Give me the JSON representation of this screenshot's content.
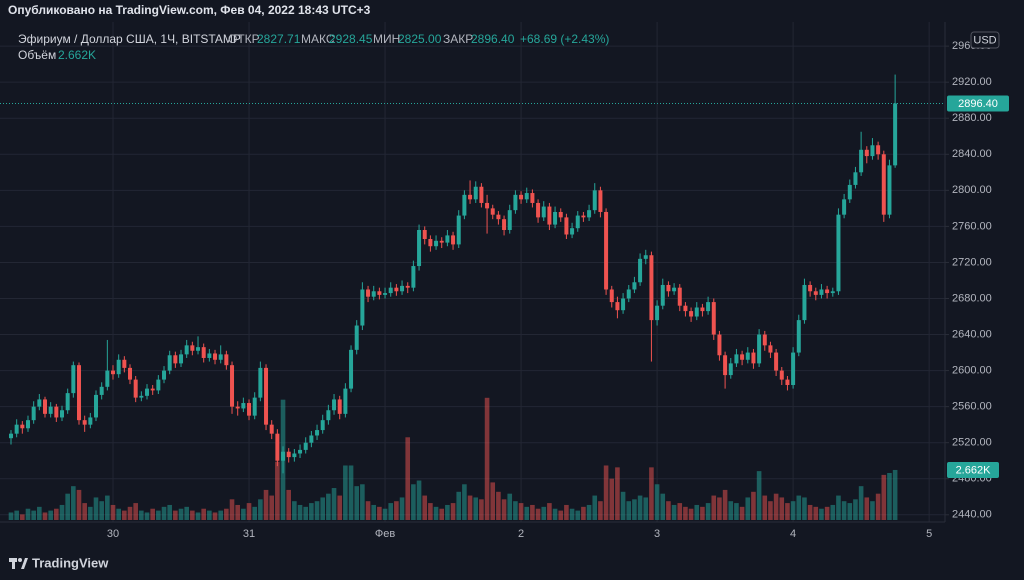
{
  "header": {
    "published": "Опубликовано на TradingView.com, Фев 04, 2022 18:43 UTC+3",
    "symbol": "Эфириум / Доллар США, 1Ч, BITSTAMP",
    "open_label": "ОТКР",
    "open": "2827.71",
    "high_label": "МАКС",
    "high": "2928.45",
    "low_label": "МИН",
    "low": "2825.00",
    "close_label": "ЗАКР",
    "close": "2896.40",
    "change": "+68.69 (+2.43%)",
    "volume_label": "Объём",
    "volume": "2.662K",
    "currency": "USD"
  },
  "footer": {
    "brand": "TradingView"
  },
  "chart_data": {
    "type": "candlestick",
    "up_color": "#26a69a",
    "down_color": "#ef5350",
    "grid": true,
    "last_price_line": true,
    "ylim": [
      2432,
      2989
    ],
    "yticks": [
      {
        "value": 2440,
        "label": "2440.00"
      },
      {
        "value": 2480,
        "label": "2480.00"
      },
      {
        "value": 2520,
        "label": "2520.00"
      },
      {
        "value": 2560,
        "label": "2560.00"
      },
      {
        "value": 2600,
        "label": "2600.00"
      },
      {
        "value": 2640,
        "label": "2640.00"
      },
      {
        "value": 2680,
        "label": "2680.00"
      },
      {
        "value": 2720,
        "label": "2720.00"
      },
      {
        "value": 2760,
        "label": "2760.00"
      },
      {
        "value": 2800,
        "label": "2800.00"
      },
      {
        "value": 2840,
        "label": "2840.00"
      },
      {
        "value": 2880,
        "label": "2880.00"
      },
      {
        "value": 2920,
        "label": "2920.00"
      },
      {
        "value": 2960,
        "label": "2960.00"
      }
    ],
    "xlim": [
      -1.94,
      164.8
    ],
    "xticks": [
      {
        "value": 18,
        "label": "30"
      },
      {
        "value": 42,
        "label": "31"
      },
      {
        "value": 66,
        "label": "Фев"
      },
      {
        "value": 90,
        "label": "2"
      },
      {
        "value": 114,
        "label": "3"
      },
      {
        "value": 138,
        "label": "4"
      },
      {
        "value": 162,
        "label": "5"
      }
    ],
    "candles": [
      [
        2525,
        2534,
        2518,
        2530
      ],
      [
        2530,
        2546,
        2526,
        2540
      ],
      [
        2540,
        2544,
        2530,
        2536
      ],
      [
        2536,
        2550,
        2532,
        2545
      ],
      [
        2545,
        2566,
        2541,
        2560
      ],
      [
        2560,
        2574,
        2556,
        2568
      ],
      [
        2568,
        2571,
        2548,
        2552
      ],
      [
        2552,
        2565,
        2548,
        2560
      ],
      [
        2560,
        2563,
        2543,
        2548
      ],
      [
        2548,
        2561,
        2544,
        2556
      ],
      [
        2556,
        2580,
        2552,
        2575
      ],
      [
        2575,
        2610,
        2570,
        2606
      ],
      [
        2606,
        2609,
        2540,
        2545
      ],
      [
        2545,
        2550,
        2532,
        2540
      ],
      [
        2540,
        2553,
        2536,
        2548
      ],
      [
        2548,
        2578,
        2544,
        2573
      ],
      [
        2573,
        2587,
        2568,
        2582
      ],
      [
        2582,
        2634,
        2578,
        2600
      ],
      [
        2600,
        2606,
        2590,
        2596
      ],
      [
        2596,
        2618,
        2592,
        2612
      ],
      [
        2612,
        2616,
        2598,
        2603
      ],
      [
        2603,
        2607,
        2585,
        2590
      ],
      [
        2590,
        2594,
        2565,
        2570
      ],
      [
        2570,
        2577,
        2566,
        2572
      ],
      [
        2572,
        2585,
        2568,
        2580
      ],
      [
        2580,
        2584,
        2573,
        2578
      ],
      [
        2578,
        2595,
        2574,
        2590
      ],
      [
        2590,
        2605,
        2586,
        2600
      ],
      [
        2600,
        2622,
        2596,
        2617
      ],
      [
        2617,
        2621,
        2603,
        2608
      ],
      [
        2608,
        2623,
        2604,
        2618
      ],
      [
        2618,
        2634,
        2614,
        2628
      ],
      [
        2628,
        2632,
        2617,
        2622
      ],
      [
        2622,
        2638,
        2618,
        2626
      ],
      [
        2626,
        2630,
        2609,
        2614
      ],
      [
        2614,
        2624,
        2610,
        2619
      ],
      [
        2619,
        2623,
        2607,
        2612
      ],
      [
        2612,
        2628,
        2608,
        2618
      ],
      [
        2618,
        2622,
        2601,
        2606
      ],
      [
        2606,
        2610,
        2552,
        2560
      ],
      [
        2560,
        2566,
        2550,
        2558
      ],
      [
        2558,
        2570,
        2554,
        2564
      ],
      [
        2564,
        2568,
        2545,
        2550
      ],
      [
        2550,
        2576,
        2546,
        2570
      ],
      [
        2570,
        2610,
        2566,
        2603
      ],
      [
        2603,
        2607,
        2534,
        2540
      ],
      [
        2540,
        2545,
        2524,
        2530
      ],
      [
        2530,
        2535,
        2494,
        2500
      ],
      [
        2500,
        2516,
        2486,
        2510
      ],
      [
        2510,
        2514,
        2498,
        2504
      ],
      [
        2504,
        2513,
        2499,
        2508
      ],
      [
        2508,
        2518,
        2503,
        2512
      ],
      [
        2512,
        2526,
        2508,
        2520
      ],
      [
        2520,
        2533,
        2515,
        2528
      ],
      [
        2528,
        2540,
        2523,
        2534
      ],
      [
        2534,
        2551,
        2530,
        2545
      ],
      [
        2545,
        2562,
        2540,
        2556
      ],
      [
        2556,
        2574,
        2551,
        2568
      ],
      [
        2568,
        2572,
        2546,
        2552
      ],
      [
        2552,
        2586,
        2548,
        2580
      ],
      [
        2580,
        2628,
        2576,
        2623
      ],
      [
        2623,
        2656,
        2618,
        2650
      ],
      [
        2650,
        2698,
        2645,
        2690
      ],
      [
        2690,
        2694,
        2676,
        2682
      ],
      [
        2682,
        2694,
        2678,
        2688
      ],
      [
        2688,
        2692,
        2679,
        2684
      ],
      [
        2684,
        2692,
        2680,
        2686
      ],
      [
        2686,
        2698,
        2682,
        2692
      ],
      [
        2692,
        2696,
        2683,
        2688
      ],
      [
        2688,
        2700,
        2684,
        2694
      ],
      [
        2694,
        2698,
        2686,
        2692
      ],
      [
        2692,
        2722,
        2688,
        2716
      ],
      [
        2716,
        2762,
        2711,
        2756
      ],
      [
        2756,
        2760,
        2740,
        2746
      ],
      [
        2746,
        2750,
        2732,
        2738
      ],
      [
        2738,
        2750,
        2734,
        2744
      ],
      [
        2744,
        2748,
        2736,
        2742
      ],
      [
        2742,
        2756,
        2738,
        2750
      ],
      [
        2750,
        2754,
        2734,
        2740
      ],
      [
        2740,
        2778,
        2736,
        2772
      ],
      [
        2772,
        2800,
        2768,
        2795
      ],
      [
        2795,
        2811,
        2785,
        2790
      ],
      [
        2790,
        2810,
        2786,
        2804
      ],
      [
        2804,
        2808,
        2781,
        2786
      ],
      [
        2786,
        2795,
        2752,
        2780
      ],
      [
        2780,
        2784,
        2768,
        2773
      ],
      [
        2773,
        2777,
        2762,
        2768
      ],
      [
        2768,
        2772,
        2750,
        2756
      ],
      [
        2756,
        2784,
        2752,
        2778
      ],
      [
        2778,
        2800,
        2774,
        2795
      ],
      [
        2795,
        2799,
        2785,
        2790
      ],
      [
        2790,
        2803,
        2786,
        2797
      ],
      [
        2797,
        2801,
        2781,
        2786
      ],
      [
        2786,
        2790,
        2764,
        2770
      ],
      [
        2770,
        2788,
        2766,
        2782
      ],
      [
        2782,
        2786,
        2756,
        2762
      ],
      [
        2762,
        2782,
        2758,
        2776
      ],
      [
        2776,
        2780,
        2765,
        2770
      ],
      [
        2770,
        2774,
        2746,
        2751
      ],
      [
        2751,
        2764,
        2747,
        2758
      ],
      [
        2758,
        2777,
        2754,
        2772
      ],
      [
        2772,
        2776,
        2765,
        2770
      ],
      [
        2770,
        2784,
        2766,
        2778
      ],
      [
        2778,
        2808,
        2774,
        2800
      ],
      [
        2800,
        2804,
        2770,
        2776
      ],
      [
        2776,
        2780,
        2684,
        2690
      ],
      [
        2690,
        2694,
        2670,
        2676
      ],
      [
        2676,
        2682,
        2658,
        2667
      ],
      [
        2667,
        2686,
        2663,
        2680
      ],
      [
        2680,
        2695,
        2676,
        2690
      ],
      [
        2690,
        2704,
        2686,
        2698
      ],
      [
        2698,
        2730,
        2694,
        2724
      ],
      [
        2724,
        2734,
        2718,
        2728
      ],
      [
        2728,
        2732,
        2610,
        2656
      ],
      [
        2656,
        2678,
        2650,
        2672
      ],
      [
        2672,
        2702,
        2668,
        2695
      ],
      [
        2695,
        2699,
        2682,
        2688
      ],
      [
        2688,
        2697,
        2684,
        2692
      ],
      [
        2692,
        2696,
        2666,
        2672
      ],
      [
        2672,
        2676,
        2660,
        2666
      ],
      [
        2666,
        2670,
        2654,
        2660
      ],
      [
        2660,
        2676,
        2656,
        2670
      ],
      [
        2670,
        2674,
        2660,
        2666
      ],
      [
        2666,
        2682,
        2662,
        2676
      ],
      [
        2676,
        2680,
        2634,
        2640
      ],
      [
        2640,
        2644,
        2611,
        2617
      ],
      [
        2617,
        2621,
        2580,
        2595
      ],
      [
        2595,
        2614,
        2591,
        2608
      ],
      [
        2608,
        2624,
        2604,
        2618
      ],
      [
        2618,
        2622,
        2606,
        2612
      ],
      [
        2612,
        2626,
        2608,
        2620
      ],
      [
        2620,
        2624,
        2602,
        2608
      ],
      [
        2608,
        2646,
        2604,
        2640
      ],
      [
        2640,
        2644,
        2622,
        2628
      ],
      [
        2628,
        2632,
        2614,
        2620
      ],
      [
        2620,
        2624,
        2594,
        2600
      ],
      [
        2600,
        2604,
        2584,
        2590
      ],
      [
        2590,
        2594,
        2578,
        2584
      ],
      [
        2584,
        2626,
        2580,
        2620
      ],
      [
        2620,
        2662,
        2616,
        2656
      ],
      [
        2656,
        2702,
        2652,
        2695
      ],
      [
        2695,
        2699,
        2682,
        2688
      ],
      [
        2688,
        2692,
        2678,
        2684
      ],
      [
        2684,
        2696,
        2680,
        2690
      ],
      [
        2690,
        2694,
        2680,
        2686
      ],
      [
        2686,
        2692,
        2682,
        2688
      ],
      [
        2688,
        2780,
        2684,
        2773
      ],
      [
        2773,
        2796,
        2769,
        2790
      ],
      [
        2790,
        2812,
        2786,
        2806
      ],
      [
        2806,
        2826,
        2802,
        2820
      ],
      [
        2820,
        2865,
        2816,
        2845
      ],
      [
        2845,
        2849,
        2830,
        2838
      ],
      [
        2838,
        2858,
        2834,
        2850
      ],
      [
        2850,
        2854,
        2834,
        2840
      ],
      [
        2840,
        2844,
        2765,
        2773
      ],
      [
        2773,
        2834,
        2769,
        2827.71
      ],
      [
        2827.71,
        2928.45,
        2825,
        2896.4
      ]
    ],
    "volumes": [
      0.4,
      0.5,
      0.3,
      0.6,
      0.5,
      0.7,
      0.4,
      0.5,
      0.6,
      0.8,
      1.4,
      1.8,
      1.6,
      0.9,
      0.7,
      1.2,
      1.0,
      1.3,
      0.8,
      0.6,
      0.5,
      0.7,
      0.9,
      0.5,
      0.4,
      0.6,
      0.5,
      0.7,
      0.8,
      0.5,
      0.6,
      0.7,
      0.5,
      0.4,
      0.6,
      0.5,
      0.4,
      0.5,
      0.6,
      1.1,
      0.8,
      0.6,
      0.9,
      0.7,
      1.1,
      1.6,
      1.3,
      3.1,
      6.4,
      1.6,
      1.0,
      0.8,
      0.7,
      0.9,
      1.0,
      1.2,
      1.4,
      1.7,
      1.3,
      2.9,
      2.9,
      1.8,
      1.9,
      1.0,
      0.8,
      0.7,
      0.6,
      0.9,
      1.0,
      1.2,
      4.4,
      1.9,
      2.1,
      1.3,
      0.9,
      0.7,
      0.6,
      0.8,
      0.9,
      1.5,
      1.9,
      1.3,
      1.2,
      1.1,
      6.5,
      2.0,
      1.5,
      1.1,
      1.4,
      1.0,
      0.9,
      0.7,
      0.8,
      0.6,
      0.7,
      0.9,
      0.6,
      0.5,
      0.8,
      0.6,
      0.5,
      0.7,
      0.8,
      1.3,
      1.0,
      2.9,
      2.2,
      2.8,
      1.5,
      1.0,
      1.1,
      1.3,
      1.2,
      2.8,
      1.9,
      1.4,
      1.0,
      0.8,
      0.9,
      0.7,
      0.6,
      0.8,
      0.7,
      0.9,
      1.3,
      1.2,
      1.6,
      1.0,
      0.9,
      0.7,
      1.2,
      1.5,
      2.6,
      1.3,
      1.0,
      1.4,
      1.2,
      0.9,
      1.0,
      1.3,
      1.2,
      0.8,
      0.7,
      0.6,
      0.7,
      0.8,
      1.3,
      1.0,
      0.9,
      1.1,
      1.8,
      1.2,
      1.0,
      1.4,
      2.4,
      2.5,
      2.662
    ]
  }
}
